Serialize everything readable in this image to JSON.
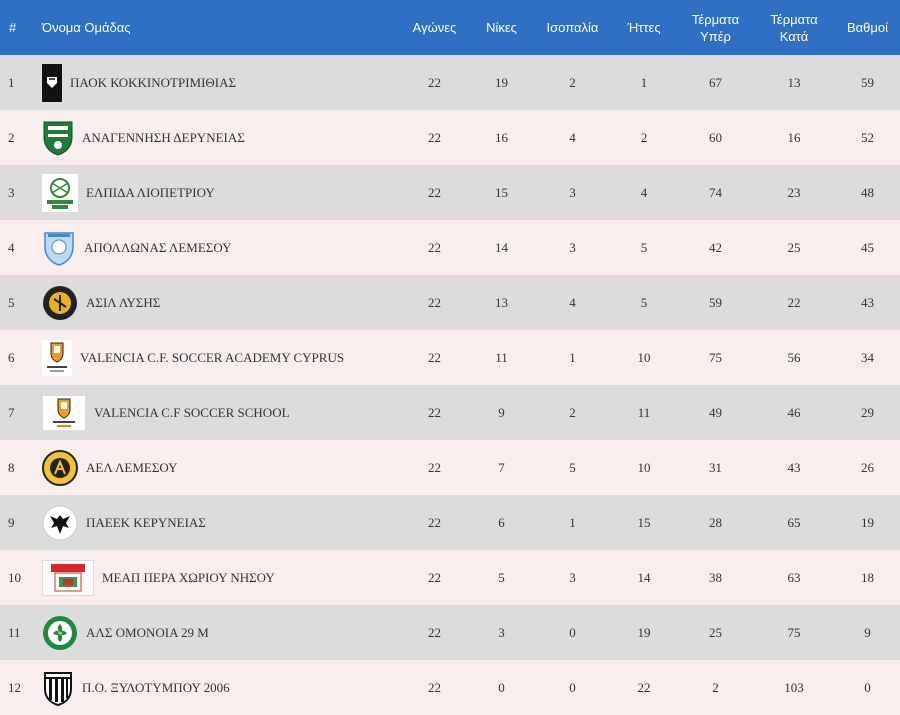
{
  "headers": {
    "pos": "#",
    "team": "Όνομα Ομάδας",
    "played": "Αγώνες",
    "wins": "Νίκες",
    "draws": "Ισοπαλία",
    "losses": "Ήττες",
    "goals_for_1": "Τέρματα",
    "goals_for_2": "Υπέρ",
    "goals_against_1": "Τέρματα",
    "goals_against_2": "Κατά",
    "points": "Βαθμοί"
  },
  "rows": [
    {
      "pos": "1",
      "team": "ΠΑΟΚ ΚΟΚΚΙΝΟΤΡΙΜΙΘΙΑΣ",
      "played": "22",
      "wins": "19",
      "draws": "2",
      "losses": "1",
      "gf": "67",
      "ga": "13",
      "pts": "59",
      "logo": "paok-logo"
    },
    {
      "pos": "2",
      "team": "ΑΝΑΓΕΝΝΗΣΗ ΔΕΡΥΝΕΙΑΣ",
      "played": "22",
      "wins": "16",
      "draws": "4",
      "losses": "2",
      "gf": "60",
      "ga": "16",
      "pts": "52",
      "logo": "anagennisi-logo"
    },
    {
      "pos": "3",
      "team": "ΕΛΠΙΔΑ ΛΙΟΠΕΤΡΙΟΥ",
      "played": "22",
      "wins": "15",
      "draws": "3",
      "losses": "4",
      "gf": "74",
      "ga": "23",
      "pts": "48",
      "logo": "elpida-logo"
    },
    {
      "pos": "4",
      "team": "ΑΠΟΛΛΩΝΑΣ ΛΕΜΕΣΟΥ",
      "played": "22",
      "wins": "14",
      "draws": "3",
      "losses": "5",
      "gf": "42",
      "ga": "25",
      "pts": "45",
      "logo": "apollon-logo"
    },
    {
      "pos": "5",
      "team": "ΑΣΙΛ ΛΥΣΗΣ",
      "played": "22",
      "wins": "13",
      "draws": "4",
      "losses": "5",
      "gf": "59",
      "ga": "22",
      "pts": "43",
      "logo": "asil-logo"
    },
    {
      "pos": "6",
      "team": "VALENCIA C.F. SOCCER ACADEMY CYPRUS",
      "played": "22",
      "wins": "11",
      "draws": "1",
      "losses": "10",
      "gf": "75",
      "ga": "56",
      "pts": "34",
      "logo": "valencia-academy-logo"
    },
    {
      "pos": "7",
      "team": "VALENCIA C.F SOCCER SCHOOL",
      "played": "22",
      "wins": "9",
      "draws": "2",
      "losses": "11",
      "gf": "49",
      "ga": "46",
      "pts": "29",
      "logo": "valencia-school-logo"
    },
    {
      "pos": "8",
      "team": "ΑΕΛ ΛΕΜΕΣΟΥ",
      "played": "22",
      "wins": "7",
      "draws": "5",
      "losses": "10",
      "gf": "31",
      "ga": "43",
      "pts": "26",
      "logo": "ael-logo"
    },
    {
      "pos": "9",
      "team": "ΠΑΕΕΚ ΚΕΡΥΝΕΙΑΣ",
      "played": "22",
      "wins": "6",
      "draws": "1",
      "losses": "15",
      "gf": "28",
      "ga": "65",
      "pts": "19",
      "logo": "paeek-logo"
    },
    {
      "pos": "10",
      "team": "ΜΕΑΠ ΠΕΡΑ ΧΩΡΙΟΥ ΝΗΣΟΥ",
      "played": "22",
      "wins": "5",
      "draws": "3",
      "losses": "14",
      "gf": "38",
      "ga": "63",
      "pts": "18",
      "logo": "meap-logo"
    },
    {
      "pos": "11",
      "team": "ΑΛΣ ΟΜΟΝΟΙΑ 29 Μ",
      "played": "22",
      "wins": "3",
      "draws": "0",
      "losses": "19",
      "gf": "25",
      "ga": "75",
      "pts": "9",
      "logo": "omonoia-logo"
    },
    {
      "pos": "12",
      "team": "Π.Ο. ΞΥΛΟΤΥΜΠΟΥ 2006",
      "played": "22",
      "wins": "0",
      "draws": "0",
      "losses": "22",
      "gf": "2",
      "ga": "103",
      "pts": "0",
      "logo": "xylotymbou-logo"
    }
  ]
}
